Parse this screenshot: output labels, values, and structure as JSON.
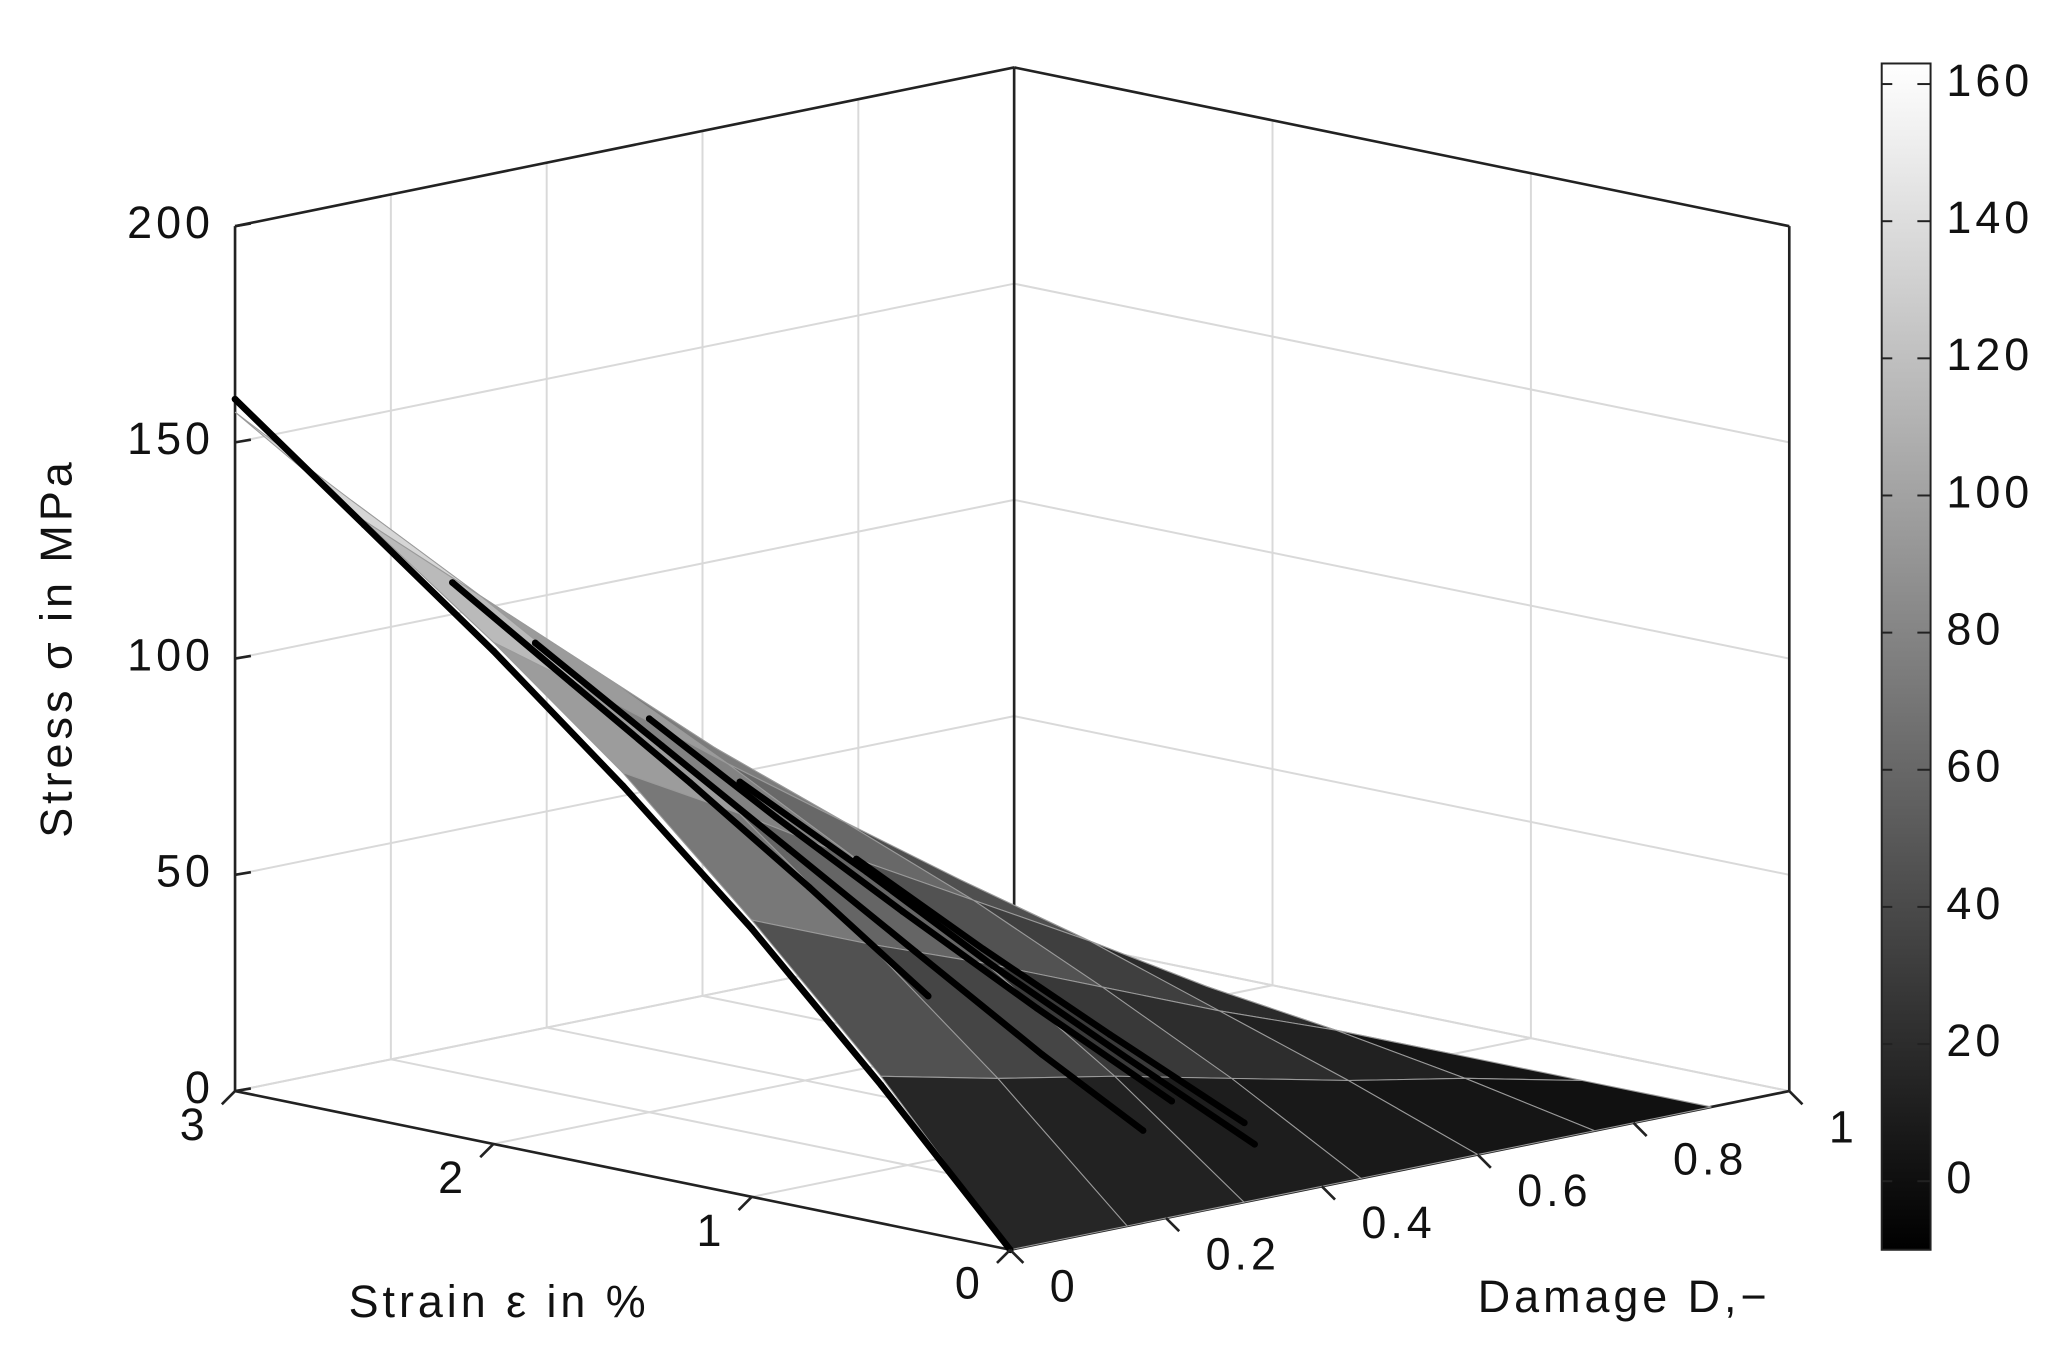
{
  "chart_data": {
    "type": "surface3d",
    "xlabel": "Strain ε in %",
    "ylabel": "Damage D,−",
    "zlabel": "Stress σ in MPa",
    "xlim": [
      0,
      3
    ],
    "ylim": [
      0,
      1
    ],
    "zlim": [
      0,
      200
    ],
    "xticks": [
      0,
      1,
      2,
      3
    ],
    "yticks": [
      0,
      0.2,
      0.4,
      0.6,
      0.8,
      1
    ],
    "zticks": [
      0,
      50,
      100,
      150,
      200
    ],
    "grid": true,
    "clim": [
      -10,
      163
    ],
    "colorbar_ticks": [
      0,
      20,
      40,
      60,
      80,
      100,
      120,
      140,
      160
    ],
    "surface": {
      "x": [
        0,
        0.5,
        1,
        1.5,
        2,
        2.5,
        3
      ],
      "y": [
        0,
        0.15,
        0.3,
        0.45,
        0.6,
        0.75,
        0.9
      ],
      "z": [
        [
          0,
          34,
          64,
          92,
          116,
          138,
          157
        ],
        [
          0,
          28,
          53,
          77,
          97,
          115,
          131
        ],
        [
          0,
          23,
          43,
          61,
          77,
          92,
          105
        ],
        [
          0,
          17,
          32,
          46,
          58,
          69,
          79
        ],
        [
          0,
          11,
          21,
          31,
          39,
          46,
          52
        ],
        [
          0,
          6,
          11,
          15,
          19,
          23,
          26
        ],
        [
          0,
          0,
          0,
          0,
          0,
          0,
          0
        ]
      ]
    },
    "line_color": "#000000",
    "lines": [
      {
        "x": [
          3,
          2.5,
          2,
          1.5,
          1,
          0.5,
          0
        ],
        "y": [
          0,
          0,
          0,
          0,
          0,
          0,
          0
        ],
        "z": [
          160,
          137,
          114,
          89,
          62,
          32,
          0
        ]
      },
      {
        "x": [
          2.2,
          1.8,
          1.4,
          1.0,
          0.6,
          0.3
        ],
        "y": [
          0.12,
          0.15,
          0.18,
          0.21,
          0.24,
          0.27
        ],
        "z": [
          109,
          89,
          69,
          49,
          29,
          14
        ]
      },
      {
        "x": [
          2.0,
          1.6,
          1.2,
          0.8,
          0.4
        ],
        "y": [
          0.2,
          0.23,
          0.26,
          0.3,
          0.34
        ],
        "z": [
          91,
          72,
          54,
          35,
          17
        ]
      },
      {
        "x": [
          1.8,
          1.4,
          1.0,
          0.6,
          0.2
        ],
        "y": [
          0.25,
          0.28,
          0.31,
          0.35,
          0.38
        ],
        "z": [
          77,
          60,
          42,
          24,
          8
        ]
      },
      {
        "x": [
          2.4,
          2.0,
          1.6,
          1.2,
          0.8
        ],
        "y": [
          0.08,
          0.1,
          0.12,
          0.14,
          0.16
        ],
        "z": [
          122,
          103,
          84,
          64,
          43
        ]
      },
      {
        "x": [
          1.5,
          1.1,
          0.7,
          0.3
        ],
        "y": [
          0.3,
          0.33,
          0.36,
          0.4
        ],
        "z": [
          61,
          44,
          28,
          11
        ]
      }
    ]
  }
}
